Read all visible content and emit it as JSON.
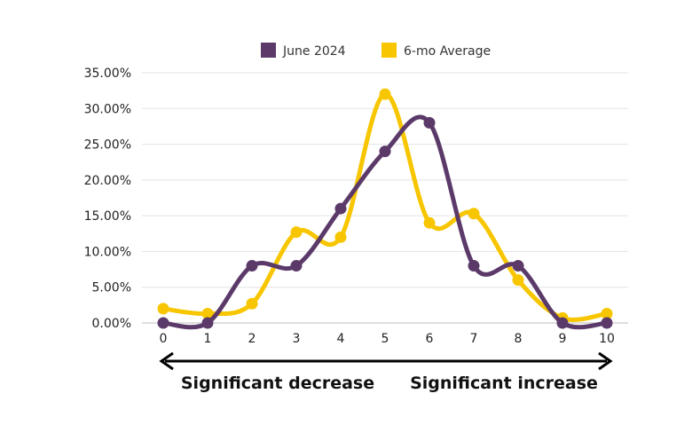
{
  "chart_data": {
    "type": "line",
    "categories": [
      "0",
      "1",
      "2",
      "3",
      "4",
      "5",
      "6",
      "7",
      "8",
      "9",
      "10"
    ],
    "ylim": [
      0,
      35
    ],
    "y_tick_labels": [
      "0.00%",
      "5.00%",
      "10.00%",
      "15.00%",
      "20.00%",
      "25.00%",
      "30.00%",
      "35.00%"
    ],
    "grid": true,
    "legend_position": "top",
    "series": [
      {
        "name": "June 2024",
        "color": "#5b3a69",
        "values": [
          0,
          0,
          8,
          8,
          16,
          24,
          28,
          8,
          8,
          0,
          0
        ]
      },
      {
        "name": "6-mo Average",
        "color": "#f7c600",
        "values": [
          2,
          1.3,
          2.7,
          12.7,
          12,
          32,
          14,
          15.3,
          6,
          0.7,
          1.3
        ]
      }
    ],
    "annotations": {
      "left": "Significant decrease",
      "right": "Significant increase"
    }
  }
}
